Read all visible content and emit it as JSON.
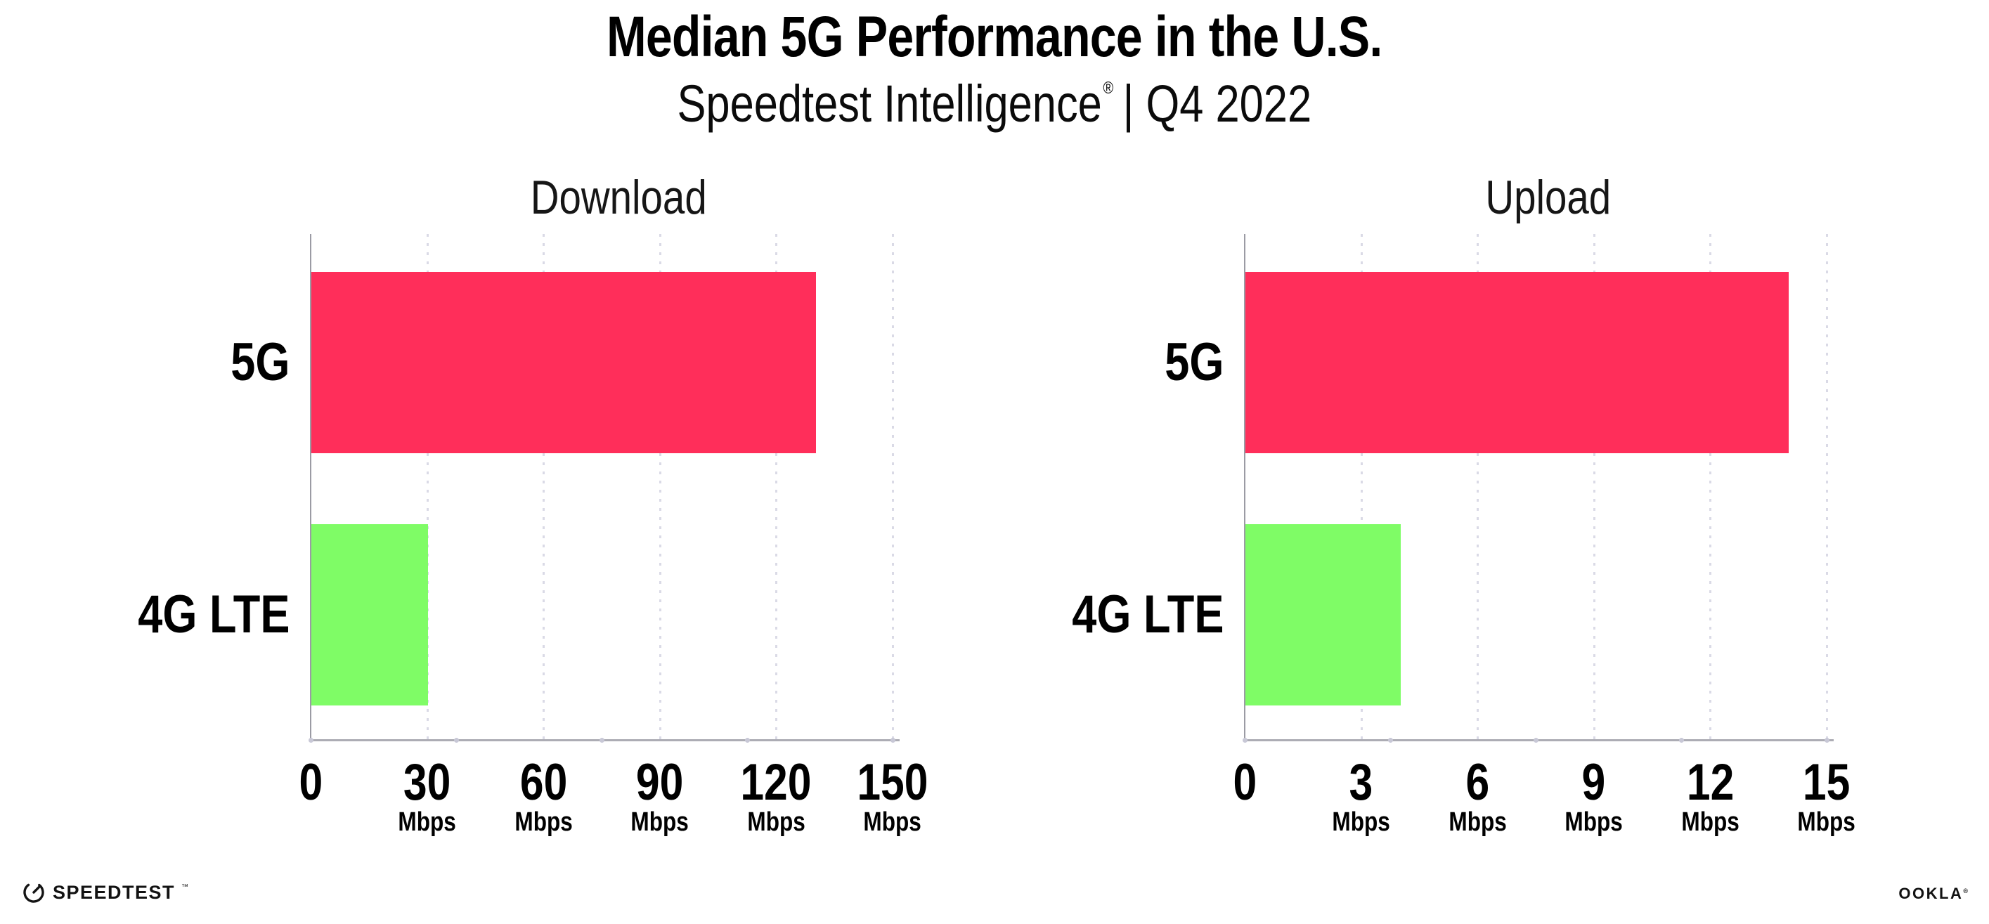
{
  "page": {
    "title_line": "Median 5G Performance in the U.S.",
    "subtitle": {
      "brand": "Speedtest Intelligence",
      "reg": "®",
      "rest": "| Q4 2022"
    }
  },
  "colors": {
    "bar_5g": "#FF2E5A",
    "bar_4g_lte": "#7FFC66",
    "gridline": "#DADAE6",
    "x_axis_line": "#ACACB4",
    "y_axis_line": "#9B9BA4",
    "axis_dot": "#C8C8D6",
    "title_text": "#000000",
    "chart_title_text": "#161616"
  },
  "chart_data": [
    {
      "type": "bar",
      "orientation": "horizontal",
      "title": "Download",
      "categories": [
        "5G",
        "4G LTE"
      ],
      "values": [
        130,
        30
      ],
      "unit": "Mbps",
      "xlim": [
        0,
        150
      ],
      "xticks": [
        0,
        30,
        60,
        90,
        120,
        150
      ],
      "bar_colors": [
        "#FF2E5A",
        "#7FFC66"
      ],
      "grid": "dotted-vertical",
      "legend": "none"
    },
    {
      "type": "bar",
      "orientation": "horizontal",
      "title": "Upload",
      "categories": [
        "5G",
        "4G LTE"
      ],
      "values": [
        14,
        4
      ],
      "unit": "Mbps",
      "xlim": [
        0,
        15
      ],
      "xticks": [
        0,
        3,
        6,
        9,
        12,
        15
      ],
      "bar_colors": [
        "#FF2E5A",
        "#7FFC66"
      ],
      "grid": "dotted-vertical",
      "legend": "none"
    }
  ],
  "footer": {
    "speedtest_label": "SPEEDTEST",
    "speedtest_tm": "™",
    "ookla_label": "OOKLA",
    "ookla_reg": "®"
  }
}
